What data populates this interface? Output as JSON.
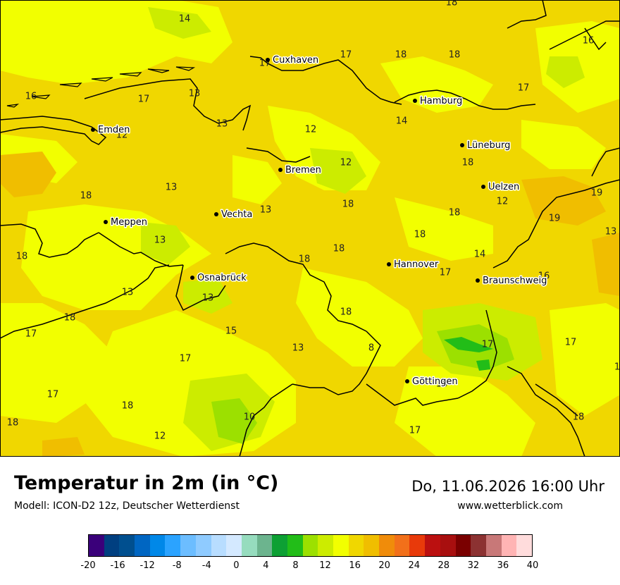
{
  "map": {
    "cities": [
      {
        "name": "Cuxhaven"
      },
      {
        "name": "Hamburg"
      },
      {
        "name": "Emden"
      },
      {
        "name": "Lüneburg"
      },
      {
        "name": "Bremen"
      },
      {
        "name": "Uelzen"
      },
      {
        "name": "Vechta"
      },
      {
        "name": "Meppen"
      },
      {
        "name": "Hannover"
      },
      {
        "name": "Osnabrück"
      },
      {
        "name": "Braunschweig"
      },
      {
        "name": "Göttingen"
      }
    ],
    "values": [
      "18",
      "14",
      "17",
      "18",
      "18",
      "17",
      "16",
      "17",
      "13",
      "16",
      "17",
      "12",
      "13",
      "12",
      "14",
      "18",
      "13",
      "18",
      "19",
      "12",
      "13",
      "18",
      "13",
      "19",
      "18",
      "12",
      "13",
      "18",
      "18",
      "18",
      "18",
      "14",
      "16",
      "13",
      "18",
      "13",
      "17",
      "17",
      "18",
      "15",
      "13",
      "8",
      "17",
      "17",
      "17",
      "18",
      "17",
      "18",
      "10",
      "12",
      "18",
      "17",
      "18",
      "1"
    ]
  },
  "footer": {
    "title": "Temperatur in 2m (in °C)",
    "model": "Modell: ICON-D2 12z, Deutscher Wetterdienst",
    "datetime": "Do, 11.06.2026 16:00 Uhr",
    "website": "www.wetterblick.com"
  },
  "legend": {
    "colors": [
      "#3a007a",
      "#003f80",
      "#004f8f",
      "#0066c2",
      "#0088e8",
      "#2ba3ff",
      "#6cbdff",
      "#8fcbff",
      "#b8ddff",
      "#d4e9ff",
      "#96dcbe",
      "#6cb48e",
      "#0da034",
      "#22bd18",
      "#9ce000",
      "#ccec00",
      "#f2ff00",
      "#f0d700",
      "#f0be00",
      "#f08c0a",
      "#f2701a",
      "#e83a0a",
      "#bb1010",
      "#a80f0f",
      "#7a0000",
      "#8c3232",
      "#c87878",
      "#ffb4b4",
      "#ffdcdc"
    ],
    "ticks": [
      "-20",
      "-16",
      "-12",
      "-8",
      "-4",
      "0",
      "4",
      "8",
      "12",
      "16",
      "20",
      "24",
      "28",
      "32",
      "36",
      "40"
    ]
  }
}
